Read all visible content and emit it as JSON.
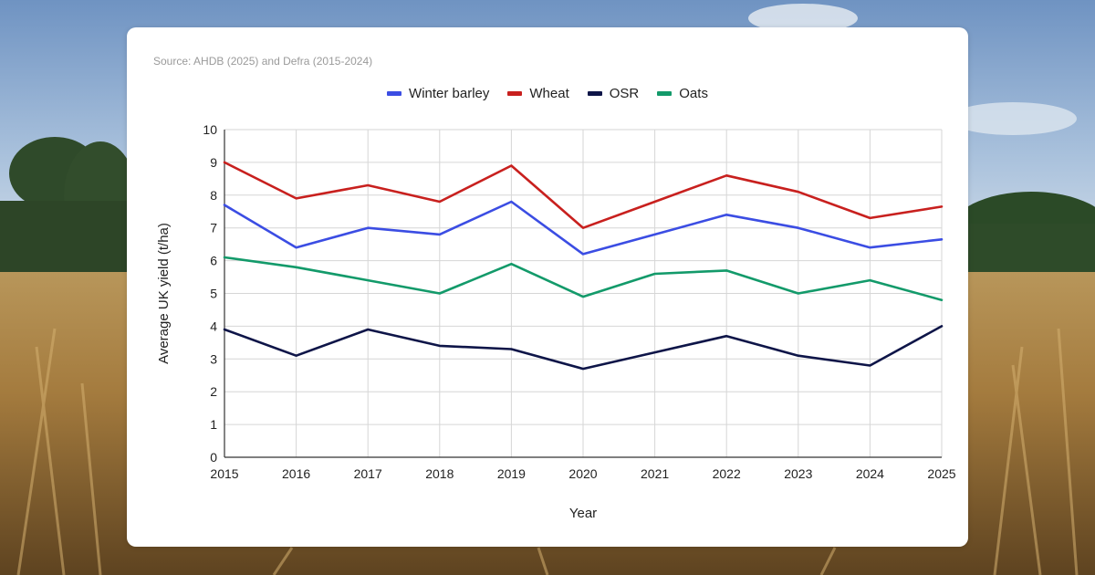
{
  "chart_data": {
    "type": "line",
    "source": "Source: AHDB (2025) and Defra (2015-2024)",
    "xlabel": "Year",
    "ylabel": "Average UK yield (t/ha)",
    "ylim": [
      0,
      10
    ],
    "yticks": [
      "0",
      "1",
      "2",
      "3",
      "4",
      "5",
      "6",
      "7",
      "8",
      "9",
      "10"
    ],
    "categories": [
      "2015",
      "2016",
      "2017",
      "2018",
      "2019",
      "2020",
      "2021",
      "2022",
      "2023",
      "2024",
      "2025"
    ],
    "series": [
      {
        "name": "Winter barley",
        "color": "#3b4de3",
        "values": [
          7.7,
          6.4,
          7.0,
          6.8,
          7.8,
          6.2,
          6.8,
          7.4,
          7.0,
          6.4,
          6.65
        ]
      },
      {
        "name": "Wheat",
        "color": "#c8201e",
        "values": [
          9.0,
          7.9,
          8.3,
          7.8,
          8.9,
          7.0,
          7.8,
          8.6,
          8.1,
          7.3,
          7.65
        ]
      },
      {
        "name": "OSR",
        "color": "#0e1548",
        "values": [
          3.9,
          3.1,
          3.9,
          3.4,
          3.3,
          2.7,
          3.2,
          3.7,
          3.1,
          2.8,
          4.0
        ]
      },
      {
        "name": "Oats",
        "color": "#139a6a",
        "values": [
          6.1,
          5.8,
          5.4,
          5.0,
          5.9,
          4.9,
          5.6,
          5.7,
          5.0,
          5.4,
          4.8
        ]
      }
    ]
  }
}
